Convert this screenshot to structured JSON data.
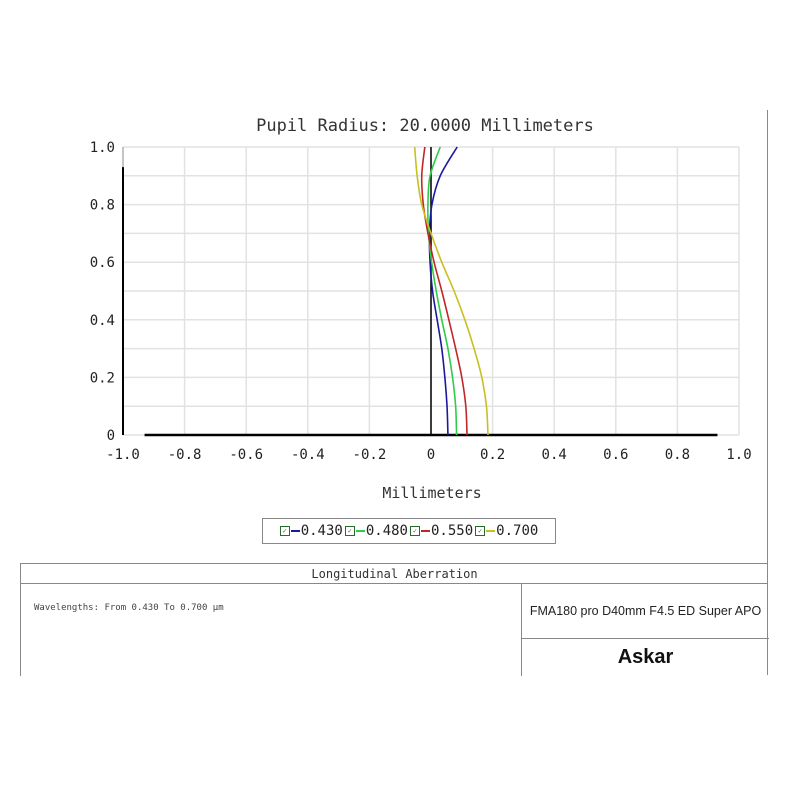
{
  "chart_data": {
    "type": "line",
    "title": "Pupil Radius: 20.0000 Millimeters",
    "xlabel": "Millimeters",
    "ylabel": "",
    "xlim": [
      -1.0,
      1.0
    ],
    "ylim": [
      0,
      1.0
    ],
    "x_ticks": [
      "-1.0",
      "-0.8",
      "-0.6",
      "-0.4",
      "-0.2",
      "0",
      "0.2",
      "0.4",
      "0.6",
      "0.8",
      "1.0"
    ],
    "y_ticks": [
      "0",
      "0.2",
      "0.4",
      "0.6",
      "0.8",
      "1.0"
    ],
    "grid": true,
    "legend_position": "bottom",
    "y": [
      0,
      0.1,
      0.2,
      0.3,
      0.4,
      0.5,
      0.6,
      0.7,
      0.8,
      0.9,
      1.0
    ],
    "series": [
      {
        "name": "0.430",
        "color": "#1a1a9a",
        "x": [
          0.055,
          0.052,
          0.045,
          0.035,
          0.02,
          0.005,
          -0.003,
          -0.005,
          0.003,
          0.03,
          0.085
        ]
      },
      {
        "name": "0.480",
        "color": "#2ecc4a",
        "x": [
          0.083,
          0.08,
          0.07,
          0.055,
          0.035,
          0.017,
          0.002,
          -0.008,
          -0.01,
          -0.003,
          0.03
        ]
      },
      {
        "name": "0.550",
        "color": "#c02828",
        "x": [
          0.117,
          0.113,
          0.1,
          0.08,
          0.058,
          0.035,
          0.01,
          -0.01,
          -0.025,
          -0.03,
          -0.02
        ]
      },
      {
        "name": "0.700",
        "color": "#c8c020",
        "x": [
          0.185,
          0.18,
          0.165,
          0.14,
          0.11,
          0.075,
          0.035,
          0.0,
          -0.03,
          -0.045,
          -0.053
        ]
      }
    ]
  },
  "legend": {
    "check_icon": "checkbox-checked-icon",
    "items": [
      "0.430",
      "0.480",
      "0.550",
      "0.700"
    ]
  },
  "footer": {
    "title": "Longitudinal Aberration",
    "wavelengths": "Wavelengths: From 0.430 To 0.700 µm",
    "lens": "FMA180 pro D40mm F4.5 ED Super APO",
    "brand": "Askar"
  }
}
